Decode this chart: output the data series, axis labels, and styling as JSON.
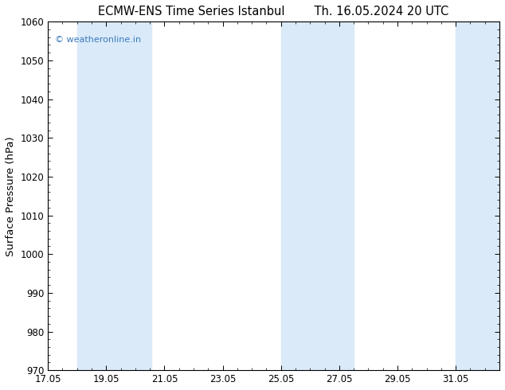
{
  "title_left": "ECMW-ENS Time Series Istanbul",
  "title_right": "Th. 16.05.2024 20 UTC",
  "ylabel": "Surface Pressure (hPa)",
  "ylim": [
    970,
    1060
  ],
  "yticks": [
    970,
    980,
    990,
    1000,
    1010,
    1020,
    1030,
    1040,
    1050,
    1060
  ],
  "xlim_start": 17.05,
  "xlim_end": 32.55,
  "xticks": [
    17.05,
    19.05,
    21.05,
    23.05,
    25.05,
    27.05,
    29.05,
    31.05
  ],
  "xtick_labels": [
    "17.05",
    "19.05",
    "21.05",
    "23.05",
    "25.05",
    "27.05",
    "29.05",
    "31.05"
  ],
  "watermark": "© weatheronline.in",
  "watermark_color": "#3a7abf",
  "background_color": "#ffffff",
  "plot_bg_color": "#ffffff",
  "band_color": "#daeaf8",
  "shaded_bands": [
    {
      "x_start": 18.05,
      "x_end": 19.55
    },
    {
      "x_start": 19.55,
      "x_end": 20.6
    },
    {
      "x_start": 25.05,
      "x_end": 26.05
    },
    {
      "x_start": 26.05,
      "x_end": 27.55
    },
    {
      "x_start": 31.05,
      "x_end": 32.55
    }
  ],
  "title_fontsize": 10.5,
  "tick_fontsize": 8.5,
  "ylabel_fontsize": 9.5
}
